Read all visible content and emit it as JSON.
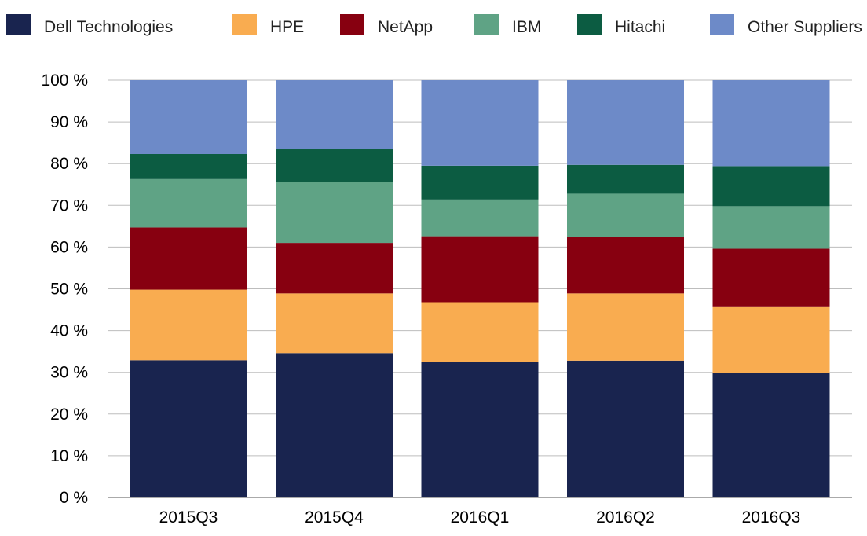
{
  "chart_data": {
    "type": "bar",
    "stacked": true,
    "categories": [
      "2015Q3",
      "2015Q4",
      "2016Q1",
      "2016Q2",
      "2016Q3"
    ],
    "series": [
      {
        "name": "Dell Technologies",
        "color": "#19244f",
        "values": [
          32.9,
          34.6,
          32.4,
          32.8,
          29.9
        ]
      },
      {
        "name": "HPE",
        "color": "#f9ac50",
        "values": [
          16.9,
          14.3,
          14.4,
          16.1,
          15.9
        ]
      },
      {
        "name": "NetApp",
        "color": "#870010",
        "values": [
          14.9,
          12.1,
          15.8,
          13.6,
          13.8
        ]
      },
      {
        "name": "IBM",
        "color": "#5fa385",
        "values": [
          11.6,
          14.6,
          8.8,
          10.3,
          10.2
        ]
      },
      {
        "name": "Hitachi",
        "color": "#0c5c42",
        "values": [
          6.0,
          7.9,
          8.1,
          6.9,
          9.6
        ]
      },
      {
        "name": "Other Suppliers",
        "color": "#6d8ac8",
        "values": [
          17.7,
          16.5,
          20.5,
          20.3,
          20.6
        ]
      }
    ],
    "ylim": [
      0,
      100
    ],
    "yticks": [
      "0 %",
      "10 %",
      "20 %",
      "30 %",
      "40 %",
      "50 %",
      "60 %",
      "70 %",
      "80 %",
      "90 %",
      "100 %"
    ],
    "grid": true,
    "legend_position": "top"
  }
}
